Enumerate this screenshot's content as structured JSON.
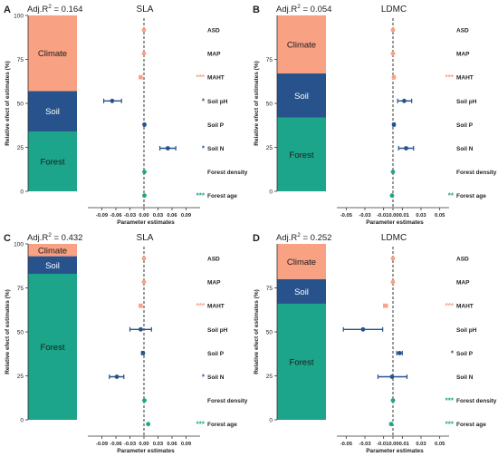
{
  "colors": {
    "climate": "#F9A183",
    "soil": "#27528C",
    "forest": "#1CA58A",
    "sig": "#1B9E77"
  },
  "panels": [
    {
      "letter": "A",
      "r2_prefix": "Adj.R",
      "r2_sup": "2",
      "r2_value": " = 0.164",
      "title": "SLA",
      "y_axis_label": "Relative efect of estimates (%)",
      "y_ticks": [
        "100",
        "75",
        "50",
        "25",
        "0"
      ],
      "stack": [
        {
          "group": "Forest",
          "label": "Forest",
          "percent": 34
        },
        {
          "group": "Soil",
          "label": "Soil",
          "percent": 23
        },
        {
          "group": "Climate",
          "label": "Climate",
          "percent": 43
        }
      ],
      "x_axis_label": "Parameter estimates",
      "x_ticks": [
        "-0.09",
        "-0.06",
        "-0.03",
        "0.00",
        "0.03",
        "0.06",
        "0.09"
      ],
      "xlim": [
        -0.12,
        0.12
      ],
      "estimates": [
        {
          "variable": "ASD",
          "group": "Climate",
          "est": 0.0,
          "lo": 0.0,
          "hi": 0.0,
          "sig": ""
        },
        {
          "variable": "MAP",
          "group": "Climate",
          "est": 0.0,
          "lo": 0.0,
          "hi": 0.0,
          "sig": ""
        },
        {
          "variable": "MAHT",
          "group": "Climate",
          "est": -0.007,
          "lo": -0.01,
          "hi": -0.004,
          "sig": "***"
        },
        {
          "variable": "Soil pH",
          "group": "Soil",
          "est": -0.068,
          "lo": -0.086,
          "hi": -0.048,
          "sig": "*"
        },
        {
          "variable": "Soil P",
          "group": "Soil",
          "est": 0.001,
          "lo": 0.0,
          "hi": 0.002,
          "sig": ""
        },
        {
          "variable": "Soil N",
          "group": "Soil",
          "est": 0.051,
          "lo": 0.034,
          "hi": 0.068,
          "sig": "*"
        },
        {
          "variable": "Forest density",
          "group": "Forest",
          "est": 0.001,
          "lo": 0.001,
          "hi": 0.001,
          "sig": ""
        },
        {
          "variable": "Forest age",
          "group": "Forest",
          "est": 0.001,
          "lo": 0.001,
          "hi": 0.001,
          "sig": "***"
        }
      ]
    },
    {
      "letter": "B",
      "r2_prefix": "Adj.R",
      "r2_sup": "2",
      "r2_value": " = 0.054",
      "title": "LDMC",
      "y_axis_label": "Relative efect of estimates (%)",
      "y_ticks": [
        "75",
        "50",
        "25",
        "0"
      ],
      "stack": [
        {
          "group": "Forest",
          "label": "Forest",
          "percent": 42
        },
        {
          "group": "Soil",
          "label": "Soil",
          "percent": 25
        },
        {
          "group": "Climate",
          "label": "Climate",
          "percent": 33
        }
      ],
      "x_axis_label": "Parameter estimates",
      "x_ticks": [
        "-0.05",
        "-0.03",
        "-0.010.000.01",
        "0.03",
        "0.05"
      ],
      "xlim": [
        -0.06,
        0.06
      ],
      "estimates": [
        {
          "variable": "ASD",
          "group": "Climate",
          "est": 0.0,
          "lo": 0.0,
          "hi": 0.0,
          "sig": ""
        },
        {
          "variable": "MAP",
          "group": "Climate",
          "est": 0.0,
          "lo": 0.0,
          "hi": 0.0,
          "sig": ""
        },
        {
          "variable": "MAHT",
          "group": "Climate",
          "est": 0.001,
          "lo": 0.0,
          "hi": 0.002,
          "sig": "***"
        },
        {
          "variable": "Soil pH",
          "group": "Soil",
          "est": 0.012,
          "lo": 0.005,
          "hi": 0.02,
          "sig": ""
        },
        {
          "variable": "Soil P",
          "group": "Soil",
          "est": 0.001,
          "lo": 0.0,
          "hi": 0.002,
          "sig": ""
        },
        {
          "variable": "Soil N",
          "group": "Soil",
          "est": 0.014,
          "lo": 0.006,
          "hi": 0.022,
          "sig": ""
        },
        {
          "variable": "Forest density",
          "group": "Forest",
          "est": 0.0,
          "lo": 0.0,
          "hi": 0.0,
          "sig": ""
        },
        {
          "variable": "Forest age",
          "group": "Forest",
          "est": -0.001,
          "lo": -0.001,
          "hi": -0.001,
          "sig": "**"
        }
      ]
    },
    {
      "letter": "C",
      "r2_prefix": "Adj.R",
      "r2_sup": "2",
      "r2_value": " = 0.432",
      "title": "SLA",
      "y_axis_label": "Relative efect of estimates (%)",
      "y_ticks": [
        "100",
        "75",
        "50",
        "25",
        "0"
      ],
      "stack": [
        {
          "group": "Forest",
          "label": "Forest",
          "percent": 83
        },
        {
          "group": "Soil",
          "label": "Soil",
          "percent": 10
        },
        {
          "group": "Climate",
          "label": "Climate",
          "percent": 7
        }
      ],
      "x_axis_label": "Parameter estimates",
      "x_ticks": [
        "-0.09",
        "-0.06",
        "-0.03",
        "0.00",
        "0.03",
        "0.06",
        "0.09"
      ],
      "xlim": [
        -0.12,
        0.12
      ],
      "estimates": [
        {
          "variable": "ASD",
          "group": "Climate",
          "est": 0.0,
          "lo": 0.0,
          "hi": 0.0,
          "sig": ""
        },
        {
          "variable": "MAP",
          "group": "Climate",
          "est": 0.0,
          "lo": 0.0,
          "hi": 0.0,
          "sig": ""
        },
        {
          "variable": "MAHT",
          "group": "Climate",
          "est": -0.007,
          "lo": -0.01,
          "hi": -0.004,
          "sig": "***"
        },
        {
          "variable": "Soil pH",
          "group": "Soil",
          "est": -0.007,
          "lo": -0.03,
          "hi": 0.016,
          "sig": ""
        },
        {
          "variable": "Soil P",
          "group": "Soil",
          "est": -0.002,
          "lo": -0.005,
          "hi": 0.0,
          "sig": ""
        },
        {
          "variable": "Soil N",
          "group": "Soil",
          "est": -0.058,
          "lo": -0.074,
          "hi": -0.043,
          "sig": "*"
        },
        {
          "variable": "Forest density",
          "group": "Forest",
          "est": 0.001,
          "lo": 0.001,
          "hi": 0.001,
          "sig": ""
        },
        {
          "variable": "Forest age",
          "group": "Forest",
          "est": 0.009,
          "lo": 0.009,
          "hi": 0.009,
          "sig": "***"
        }
      ]
    },
    {
      "letter": "D",
      "r2_prefix": "Adj.R",
      "r2_sup": "2",
      "r2_value": " = 0.252",
      "title": "LDMC",
      "y_axis_label": "Relative efect of estimates (%)",
      "y_ticks": [
        "75",
        "50",
        "25",
        "0"
      ],
      "stack": [
        {
          "group": "Forest",
          "label": "Forest",
          "percent": 66
        },
        {
          "group": "Soil",
          "label": "Soil",
          "percent": 14
        },
        {
          "group": "Climate",
          "label": "Climate",
          "percent": 20
        }
      ],
      "x_axis_label": "Parameter estimates",
      "x_ticks": [
        "-0.05",
        "-0.03",
        "-0.010.000.01",
        "0.03",
        "0.05"
      ],
      "xlim": [
        -0.06,
        0.06
      ],
      "estimates": [
        {
          "variable": "ASD",
          "group": "Climate",
          "est": 0.0,
          "lo": 0.0,
          "hi": 0.0,
          "sig": ""
        },
        {
          "variable": "MAP",
          "group": "Climate",
          "est": 0.0,
          "lo": 0.0,
          "hi": 0.0,
          "sig": ""
        },
        {
          "variable": "MAHT",
          "group": "Climate",
          "est": -0.008,
          "lo": -0.01,
          "hi": -0.006,
          "sig": "***"
        },
        {
          "variable": "Soil pH",
          "group": "Soil",
          "est": -0.032,
          "lo": -0.053,
          "hi": -0.011,
          "sig": ""
        },
        {
          "variable": "Soil P",
          "group": "Soil",
          "est": 0.007,
          "lo": 0.004,
          "hi": 0.01,
          "sig": "*"
        },
        {
          "variable": "Soil N",
          "group": "Soil",
          "est": -0.001,
          "lo": -0.016,
          "hi": 0.015,
          "sig": ""
        },
        {
          "variable": "Forest density",
          "group": "Forest",
          "est": 0.0,
          "lo": 0.0,
          "hi": 0.0,
          "sig": "***"
        },
        {
          "variable": "Forest age",
          "group": "Forest",
          "est": -0.002,
          "lo": -0.002,
          "hi": -0.002,
          "sig": "***"
        }
      ]
    }
  ],
  "chart_data": [
    {
      "type": "bar",
      "panel": "A",
      "title": "SLA",
      "annotation": "Adj.R2 = 0.164",
      "ylabel": "Relative efect of estimates (%)",
      "ylim": [
        0,
        100
      ],
      "categories": [
        "Forest",
        "Soil",
        "Climate"
      ],
      "values": [
        34,
        23,
        43
      ]
    },
    {
      "type": "scatter",
      "panel": "A",
      "title": "SLA",
      "xlabel": "Parameter estimates",
      "xlim": [
        -0.12,
        0.12
      ],
      "categories": [
        "ASD",
        "MAP",
        "MAHT",
        "Soil pH",
        "Soil P",
        "Soil N",
        "Forest density",
        "Forest age"
      ],
      "values": [
        0.0,
        0.0,
        -0.007,
        -0.068,
        0.001,
        0.051,
        0.001,
        0.001
      ],
      "lower": [
        0.0,
        0.0,
        -0.01,
        -0.086,
        0.0,
        0.034,
        0.001,
        0.001
      ],
      "upper": [
        0.0,
        0.0,
        -0.004,
        -0.048,
        0.002,
        0.068,
        0.001,
        0.001
      ],
      "significance": [
        "",
        "",
        "***",
        "*",
        "",
        "*",
        "",
        "***"
      ]
    },
    {
      "type": "bar",
      "panel": "B",
      "title": "LDMC",
      "annotation": "Adj.R2 = 0.054",
      "ylabel": "Relative efect of estimates (%)",
      "ylim": [
        0,
        100
      ],
      "categories": [
        "Forest",
        "Soil",
        "Climate"
      ],
      "values": [
        42,
        25,
        33
      ]
    },
    {
      "type": "scatter",
      "panel": "B",
      "title": "LDMC",
      "xlabel": "Parameter estimates",
      "xlim": [
        -0.06,
        0.06
      ],
      "categories": [
        "ASD",
        "MAP",
        "MAHT",
        "Soil pH",
        "Soil P",
        "Soil N",
        "Forest density",
        "Forest age"
      ],
      "values": [
        0.0,
        0.0,
        0.001,
        0.012,
        0.001,
        0.014,
        0.0,
        -0.001
      ],
      "lower": [
        0.0,
        0.0,
        0.0,
        0.005,
        0.0,
        0.006,
        0.0,
        -0.001
      ],
      "upper": [
        0.0,
        0.0,
        0.002,
        0.02,
        0.002,
        0.022,
        0.0,
        -0.001
      ],
      "significance": [
        "",
        "",
        "***",
        "",
        "",
        "",
        "",
        "**"
      ]
    },
    {
      "type": "bar",
      "panel": "C",
      "title": "SLA",
      "annotation": "Adj.R2 = 0.432",
      "ylabel": "Relative efect of estimates (%)",
      "ylim": [
        0,
        100
      ],
      "categories": [
        "Forest",
        "Soil",
        "Climate"
      ],
      "values": [
        83,
        10,
        7
      ]
    },
    {
      "type": "scatter",
      "panel": "C",
      "title": "SLA",
      "xlabel": "Parameter estimates",
      "xlim": [
        -0.12,
        0.12
      ],
      "categories": [
        "ASD",
        "MAP",
        "MAHT",
        "Soil pH",
        "Soil P",
        "Soil N",
        "Forest density",
        "Forest age"
      ],
      "values": [
        0.0,
        0.0,
        -0.007,
        -0.007,
        -0.002,
        -0.058,
        0.001,
        0.009
      ],
      "lower": [
        0.0,
        0.0,
        -0.01,
        -0.03,
        -0.005,
        -0.074,
        0.001,
        0.009
      ],
      "upper": [
        0.0,
        0.0,
        -0.004,
        0.016,
        0.0,
        -0.043,
        0.001,
        0.009
      ],
      "significance": [
        "",
        "",
        "***",
        "",
        "",
        "*",
        "",
        "***"
      ]
    },
    {
      "type": "bar",
      "panel": "D",
      "title": "LDMC",
      "annotation": "Adj.R2 = 0.252",
      "ylabel": "Relative efect of estimates (%)",
      "ylim": [
        0,
        100
      ],
      "categories": [
        "Forest",
        "Soil",
        "Climate"
      ],
      "values": [
        66,
        14,
        20
      ]
    },
    {
      "type": "scatter",
      "panel": "D",
      "title": "LDMC",
      "xlabel": "Parameter estimates",
      "xlim": [
        -0.06,
        0.06
      ],
      "categories": [
        "ASD",
        "MAP",
        "MAHT",
        "Soil pH",
        "Soil P",
        "Soil N",
        "Forest density",
        "Forest age"
      ],
      "values": [
        0.0,
        0.0,
        -0.008,
        -0.032,
        0.007,
        -0.001,
        0.0,
        -0.002
      ],
      "lower": [
        0.0,
        0.0,
        -0.01,
        -0.053,
        0.004,
        -0.016,
        0.0,
        -0.002
      ],
      "upper": [
        0.0,
        0.0,
        -0.006,
        -0.011,
        0.01,
        0.015,
        0.0,
        -0.002
      ],
      "significance": [
        "",
        "",
        "***",
        "",
        "*",
        "",
        "***",
        "***"
      ]
    }
  ]
}
